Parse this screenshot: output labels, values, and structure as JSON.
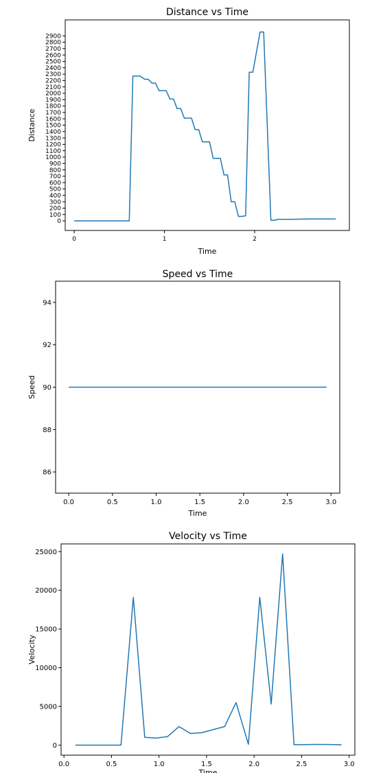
{
  "colors": {
    "line": "#1f77b4",
    "axes": "#000000",
    "background": "#ffffff"
  },
  "chart_data": [
    {
      "type": "line",
      "title": "Distance vs Time",
      "xlabel": "Time",
      "ylabel": "Distance",
      "xlim": [
        -0.1,
        3.05
      ],
      "ylim": [
        -150,
        3150
      ],
      "xticks": [
        0,
        1,
        2
      ],
      "xtick_labels": [
        "0",
        "1",
        "2"
      ],
      "yticks": [
        0,
        100,
        200,
        300,
        400,
        500,
        600,
        700,
        800,
        900,
        1000,
        1100,
        1200,
        1300,
        1400,
        1500,
        1600,
        1700,
        1800,
        1900,
        2000,
        2100,
        2200,
        2300,
        2400,
        2500,
        2600,
        2700,
        2800,
        2900
      ],
      "ytick_labels": [
        "0",
        "100",
        "200",
        "300",
        "400",
        "500",
        "600",
        "700",
        "800",
        "900",
        "1000",
        "1100",
        "1200",
        "1300",
        "1400",
        "1500",
        "1600",
        "1700",
        "1800",
        "1900",
        "2000",
        "2100",
        "2200",
        "2300",
        "2400",
        "2500",
        "2600",
        "2700",
        "2800",
        "2900"
      ],
      "grid": false,
      "series": [
        {
          "x": [
            0,
            0.12,
            0.24,
            0.36,
            0.48,
            0.61,
            0.65,
            0.73,
            0.78,
            0.82,
            0.86,
            0.9,
            0.94,
            1.02,
            1.06,
            1.1,
            1.14,
            1.18,
            1.22,
            1.3,
            1.34,
            1.38,
            1.42,
            1.5,
            1.54,
            1.62,
            1.66,
            1.7,
            1.74,
            1.78,
            1.82,
            1.86,
            1.9,
            1.94,
            1.98,
            2.06,
            2.1,
            2.18,
            2.22,
            2.26,
            2.3,
            2.4,
            2.5,
            2.6,
            2.7,
            2.8,
            2.9
          ],
          "y": [
            0,
            0,
            0,
            0,
            0,
            0,
            2270,
            2270,
            2220,
            2220,
            2160,
            2160,
            2040,
            2040,
            1910,
            1910,
            1760,
            1760,
            1610,
            1610,
            1430,
            1430,
            1240,
            1240,
            980,
            980,
            720,
            720,
            300,
            300,
            70,
            70,
            80,
            2330,
            2330,
            2960,
            2960,
            10,
            10,
            25,
            25,
            25,
            27,
            30,
            30,
            30,
            30
          ]
        }
      ]
    },
    {
      "type": "line",
      "title": "Speed vs Time",
      "xlabel": "Time",
      "ylabel": "Speed",
      "xlim": [
        -0.15,
        3.1
      ],
      "ylim": [
        85,
        95
      ],
      "xticks": [
        0,
        0.5,
        1,
        1.5,
        2,
        2.5,
        3
      ],
      "xtick_labels": [
        "0.0",
        "0.5",
        "1.0",
        "1.5",
        "2.0",
        "2.5",
        "3.0"
      ],
      "yticks": [
        86,
        88,
        90,
        92,
        94
      ],
      "ytick_labels": [
        "86",
        "88",
        "90",
        "92",
        "94"
      ],
      "grid": false,
      "series": [
        {
          "x": [
            0,
            2.95
          ],
          "y": [
            90,
            90
          ]
        }
      ]
    },
    {
      "type": "line",
      "title": "Velocity vs Time",
      "xlabel": "Time",
      "ylabel": "Velocity",
      "xlim": [
        -0.03,
        3.06
      ],
      "ylim": [
        -1300,
        26000
      ],
      "xticks": [
        0,
        0.5,
        1,
        1.5,
        2,
        2.5,
        3
      ],
      "xtick_labels": [
        "0.0",
        "0.5",
        "1.0",
        "1.5",
        "2.0",
        "2.5",
        "3.0"
      ],
      "yticks": [
        0,
        5000,
        10000,
        15000,
        20000,
        25000
      ],
      "ytick_labels": [
        "0",
        "5000",
        "10000",
        "15000",
        "20000",
        "25000"
      ],
      "grid": false,
      "series": [
        {
          "x": [
            0.12,
            0.24,
            0.36,
            0.48,
            0.6,
            0.73,
            0.85,
            0.97,
            1.09,
            1.21,
            1.33,
            1.45,
            1.57,
            1.69,
            1.81,
            1.94,
            2.06,
            2.18,
            2.3,
            2.42,
            2.54,
            2.66,
            2.78,
            2.92
          ],
          "y": [
            0,
            0,
            0,
            0,
            0,
            19100,
            1000,
            900,
            1100,
            2400,
            1500,
            1600,
            2000,
            2400,
            5500,
            100,
            19100,
            5300,
            24700,
            50,
            60,
            80,
            70,
            40
          ]
        }
      ]
    }
  ]
}
